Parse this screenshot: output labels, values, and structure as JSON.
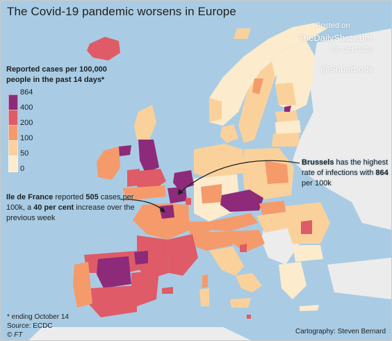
{
  "title": "The Covid-19 pandemic worsens in Europe",
  "watermark": {
    "posted": "Posted on",
    "site": "TheDailyShot.com",
    "date": "16-Oct-2020",
    "handle": "@SoberLook"
  },
  "legend": {
    "title": "Reported cases per 100,000 people in the past 14 days*",
    "ticks": [
      "864",
      "400",
      "200",
      "100",
      "50",
      "0"
    ],
    "colors": [
      "#8e2a7a",
      "#de5b67",
      "#f59a6b",
      "#fbd19b",
      "#fcebcd"
    ]
  },
  "annotations": {
    "brussels": {
      "bold": "Brussels",
      "text_after_bold": " has the highest rate of infections with ",
      "value": "864",
      "unit": " per 100k"
    },
    "ile_de_france": {
      "bold": "Ile de France",
      "text_a": " reported ",
      "cases": "505",
      "text_b": " cases per 100k, a ",
      "increase": "40 per cent",
      "text_c": " increase over the previous week"
    }
  },
  "footnotes": {
    "ending": "* ending October 14",
    "source": "Source: ECDC",
    "credit": "© FT",
    "cartography": "Cartography: Steven Bernard"
  },
  "colors": {
    "sea": "#a9cce4",
    "nodata": "#ececec",
    "arrow": "#1e1e1e"
  }
}
